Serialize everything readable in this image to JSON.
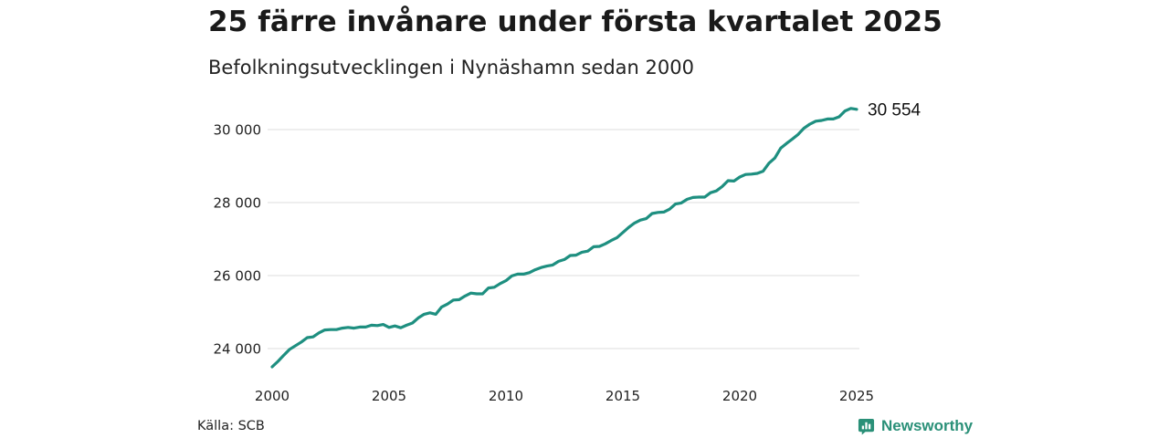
{
  "header": {
    "title": "25 färre invånare under första kvartalet 2025",
    "subtitle": "Befolkningsutvecklingen i Nynäshamn sedan 2000"
  },
  "footer": {
    "source": "Källa: SCB",
    "brand": "Newsworthy",
    "brand_icon": "bar-chart-speech-bubble-icon"
  },
  "colors": {
    "line": "#1e8f80",
    "grid": "#e3e3e3",
    "brand": "#2a9078"
  },
  "chart_data": {
    "type": "line",
    "title": "25 färre invånare under första kvartalet 2025",
    "subtitle": "Befolkningsutvecklingen i Nynäshamn sedan 2000",
    "xlabel": "",
    "ylabel": "",
    "xlim": [
      2000,
      2025.25
    ],
    "ylim": [
      23300,
      30900
    ],
    "x_ticks": [
      2000,
      2005,
      2010,
      2015,
      2020,
      2025
    ],
    "x_tick_labels": [
      "2000",
      "2005",
      "2010",
      "2015",
      "2020",
      "2025"
    ],
    "y_ticks": [
      24000,
      26000,
      28000,
      30000
    ],
    "y_tick_labels": [
      "24 000",
      "26 000",
      "28 000",
      "30 000"
    ],
    "grid": "horizontal",
    "legend": "none",
    "end_label": "30 554",
    "series": [
      {
        "x": [
          2000,
          2000.25,
          2000.5,
          2000.75,
          2001,
          2001.25,
          2001.5,
          2001.75,
          2002,
          2002.25,
          2002.5,
          2002.75,
          2003,
          2003.25,
          2003.5,
          2003.75,
          2004,
          2004.25,
          2004.5,
          2004.75,
          2005,
          2005.25,
          2005.5,
          2005.75,
          2006,
          2006.25,
          2006.5,
          2006.75,
          2007,
          2007.25,
          2007.5,
          2007.75,
          2008,
          2008.25,
          2008.5,
          2008.75,
          2009,
          2009.25,
          2009.5,
          2009.75,
          2010,
          2010.25,
          2010.5,
          2010.75,
          2011,
          2011.25,
          2011.5,
          2011.75,
          2012,
          2012.25,
          2012.5,
          2012.75,
          2013,
          2013.25,
          2013.5,
          2013.75,
          2014,
          2014.25,
          2014.5,
          2014.75,
          2015,
          2015.25,
          2015.5,
          2015.75,
          2016,
          2016.25,
          2016.5,
          2016.75,
          2017,
          2017.25,
          2017.5,
          2017.75,
          2018,
          2018.25,
          2018.5,
          2018.75,
          2019,
          2019.25,
          2019.5,
          2019.75,
          2020,
          2020.25,
          2020.5,
          2020.75,
          2021,
          2021.25,
          2021.5,
          2021.75,
          2022,
          2022.25,
          2022.5,
          2022.75,
          2023,
          2023.25,
          2023.5,
          2023.75,
          2024,
          2024.25,
          2024.5,
          2024.75,
          2025
        ],
        "y": [
          23500,
          23650,
          23820,
          23980,
          24080,
          24180,
          24300,
          24320,
          24430,
          24510,
          24520,
          24520,
          24560,
          24580,
          24560,
          24590,
          24590,
          24640,
          24630,
          24660,
          24580,
          24620,
          24570,
          24640,
          24700,
          24840,
          24940,
          24980,
          24940,
          25140,
          25220,
          25330,
          25340,
          25440,
          25520,
          25500,
          25500,
          25660,
          25680,
          25780,
          25860,
          25990,
          26040,
          26040,
          26080,
          26160,
          26220,
          26260,
          26290,
          26390,
          26440,
          26550,
          26560,
          26640,
          26670,
          26790,
          26800,
          26870,
          26960,
          27040,
          27180,
          27320,
          27440,
          27520,
          27560,
          27700,
          27730,
          27740,
          27820,
          27960,
          27990,
          28090,
          28140,
          28150,
          28150,
          28270,
          28320,
          28440,
          28600,
          28590,
          28700,
          28770,
          28780,
          28800,
          28860,
          29080,
          29220,
          29490,
          29620,
          29740,
          29870,
          30040,
          30150,
          30230,
          30250,
          30290,
          30290,
          30350,
          30510,
          30579,
          30554
        ]
      }
    ]
  }
}
